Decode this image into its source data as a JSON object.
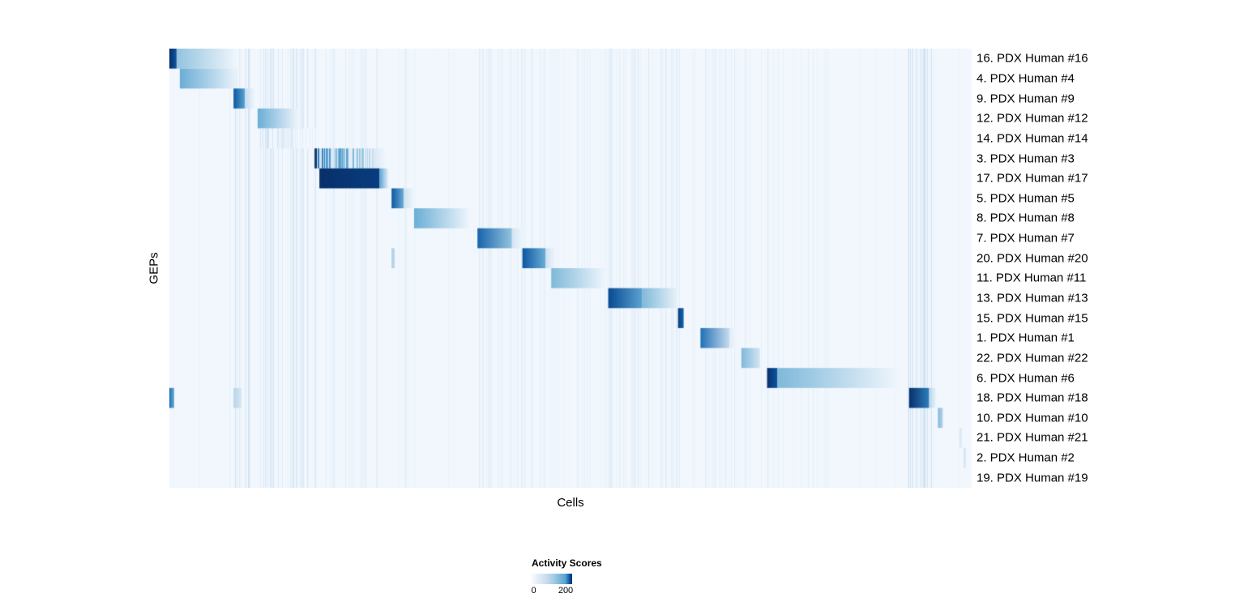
{
  "axes": {
    "xlabel": "Cells",
    "ylabel": "GEPs"
  },
  "legend": {
    "title": "Activity Scores",
    "ticks": [
      "0",
      "200"
    ],
    "tick_positions": [
      0.05,
      0.84
    ]
  },
  "chart_data": {
    "type": "heatmap",
    "title": "",
    "xlabel": "Cells",
    "ylabel": "GEPs",
    "colormap": "Blues",
    "value_range": [
      0,
      240
    ],
    "colorbar": {
      "title": "Activity Scores",
      "tick_labels": [
        "0",
        "200"
      ],
      "tick_positions": [
        0.05,
        0.84
      ]
    },
    "background_value": 0.03,
    "rows": [
      {
        "label": "16. PDX Human #16",
        "segments": [
          {
            "x0": 0.0,
            "x1": 0.009,
            "v0": 1.0,
            "v1": 0.85
          },
          {
            "x0": 0.009,
            "x1": 0.085,
            "v0": 0.4,
            "v1": 0.03
          }
        ]
      },
      {
        "label": "4. PDX Human #4",
        "segments": [
          {
            "x0": 0.013,
            "x1": 0.084,
            "v0": 0.5,
            "v1": 0.06
          }
        ]
      },
      {
        "label": "9. PDX Human #9",
        "segments": [
          {
            "x0": 0.08,
            "x1": 0.094,
            "v0": 0.85,
            "v1": 0.55
          },
          {
            "x0": 0.094,
            "x1": 0.106,
            "v0": 0.25,
            "v1": 0.04
          }
        ]
      },
      {
        "label": "12. PDX Human #12",
        "segments": [
          {
            "x0": 0.11,
            "x1": 0.159,
            "v0": 0.5,
            "v1": 0.06
          }
        ]
      },
      {
        "label": "14. PDX Human #14",
        "segments": [
          {
            "x0": 0.112,
            "x1": 0.183,
            "v0": 0.18,
            "v1": 0.07,
            "stripes": true
          }
        ]
      },
      {
        "label": "3. PDX Human #3",
        "segments": [
          {
            "x0": 0.181,
            "x1": 0.184,
            "v0": 1.0,
            "v1": 1.0
          },
          {
            "x0": 0.184,
            "x1": 0.254,
            "v0": 0.7,
            "v1": 0.25,
            "stripes": true
          },
          {
            "x0": 0.254,
            "x1": 0.269,
            "v0": 0.15,
            "v1": 0.04
          }
        ]
      },
      {
        "label": "17. PDX Human #17",
        "segments": [
          {
            "x0": 0.187,
            "x1": 0.262,
            "v0": 1.0,
            "v1": 0.95
          },
          {
            "x0": 0.262,
            "x1": 0.273,
            "v0": 0.55,
            "v1": 0.07
          }
        ]
      },
      {
        "label": "5. PDX Human #5",
        "segments": [
          {
            "x0": 0.277,
            "x1": 0.292,
            "v0": 0.85,
            "v1": 0.5
          },
          {
            "x0": 0.292,
            "x1": 0.305,
            "v0": 0.2,
            "v1": 0.04
          }
        ]
      },
      {
        "label": "8. PDX Human #8",
        "segments": [
          {
            "x0": 0.305,
            "x1": 0.373,
            "v0": 0.5,
            "v1": 0.05
          }
        ]
      },
      {
        "label": "7. PDX Human #7",
        "segments": [
          {
            "x0": 0.384,
            "x1": 0.427,
            "v0": 0.8,
            "v1": 0.4
          },
          {
            "x0": 0.427,
            "x1": 0.441,
            "v0": 0.18,
            "v1": 0.04
          }
        ]
      },
      {
        "label": "20. PDX Human #20",
        "segments": [
          {
            "x0": 0.277,
            "x1": 0.281,
            "v0": 0.35,
            "v1": 0.25
          },
          {
            "x0": 0.44,
            "x1": 0.469,
            "v0": 0.85,
            "v1": 0.5
          },
          {
            "x0": 0.469,
            "x1": 0.481,
            "v0": 0.2,
            "v1": 0.04
          }
        ]
      },
      {
        "label": "11. PDX Human #11",
        "segments": [
          {
            "x0": 0.476,
            "x1": 0.542,
            "v0": 0.45,
            "v1": 0.05
          }
        ]
      },
      {
        "label": "13. PDX Human #13",
        "segments": [
          {
            "x0": 0.547,
            "x1": 0.589,
            "v0": 0.9,
            "v1": 0.55
          },
          {
            "x0": 0.589,
            "x1": 0.634,
            "v0": 0.45,
            "v1": 0.06
          }
        ]
      },
      {
        "label": "15. PDX Human #15",
        "segments": [
          {
            "x0": 0.634,
            "x1": 0.641,
            "v0": 0.95,
            "v1": 0.8
          }
        ]
      },
      {
        "label": "1. PDX Human #1",
        "segments": [
          {
            "x0": 0.662,
            "x1": 0.698,
            "v0": 0.75,
            "v1": 0.25
          },
          {
            "x0": 0.698,
            "x1": 0.707,
            "v0": 0.12,
            "v1": 0.03
          }
        ]
      },
      {
        "label": "22. PDX Human #22",
        "segments": [
          {
            "x0": 0.713,
            "x1": 0.736,
            "v0": 0.45,
            "v1": 0.18
          }
        ]
      },
      {
        "label": "6. PDX Human #6",
        "segments": [
          {
            "x0": 0.745,
            "x1": 0.758,
            "v0": 1.0,
            "v1": 0.85
          },
          {
            "x0": 0.758,
            "x1": 0.91,
            "v0": 0.45,
            "v1": 0.03
          }
        ]
      },
      {
        "label": "18. PDX Human #18",
        "segments": [
          {
            "x0": 0.0,
            "x1": 0.006,
            "v0": 0.75,
            "v1": 0.5
          },
          {
            "x0": 0.08,
            "x1": 0.09,
            "v0": 0.3,
            "v1": 0.15
          },
          {
            "x0": 0.922,
            "x1": 0.947,
            "v0": 1.0,
            "v1": 0.7
          },
          {
            "x0": 0.947,
            "x1": 0.956,
            "v0": 0.3,
            "v1": 0.05
          }
        ]
      },
      {
        "label": "10. PDX Human #10",
        "segments": [
          {
            "x0": 0.958,
            "x1": 0.964,
            "v0": 0.45,
            "v1": 0.3
          }
        ]
      },
      {
        "label": "21. PDX Human #21",
        "segments": [
          {
            "x0": 0.985,
            "x1": 0.988,
            "v0": 0.15,
            "v1": 0.1
          }
        ]
      },
      {
        "label": "2. PDX Human #2",
        "segments": [
          {
            "x0": 0.99,
            "x1": 0.993,
            "v0": 0.2,
            "v1": 0.12
          }
        ]
      },
      {
        "label": "19. PDX Human #19",
        "segments": []
      }
    ],
    "background_bands": [
      {
        "x0": 0.0,
        "x1": 1.0,
        "density": 0.05,
        "intensity": 0.08
      },
      {
        "x0": 0.08,
        "x1": 0.1,
        "density": 0.35,
        "intensity": 0.16
      },
      {
        "x0": 0.112,
        "x1": 0.185,
        "density": 0.3,
        "intensity": 0.14
      },
      {
        "x0": 0.188,
        "x1": 0.265,
        "density": 0.22,
        "intensity": 0.1
      },
      {
        "x0": 0.278,
        "x1": 0.302,
        "density": 0.3,
        "intensity": 0.11
      },
      {
        "x0": 0.385,
        "x1": 0.47,
        "density": 0.28,
        "intensity": 0.12
      },
      {
        "x0": 0.478,
        "x1": 0.543,
        "density": 0.18,
        "intensity": 0.09
      },
      {
        "x0": 0.548,
        "x1": 0.64,
        "density": 0.28,
        "intensity": 0.12
      },
      {
        "x0": 0.663,
        "x1": 0.74,
        "density": 0.22,
        "intensity": 0.1
      },
      {
        "x0": 0.746,
        "x1": 0.762,
        "density": 0.3,
        "intensity": 0.11
      },
      {
        "x0": 0.922,
        "x1": 0.95,
        "density": 0.45,
        "intensity": 0.2
      }
    ]
  }
}
